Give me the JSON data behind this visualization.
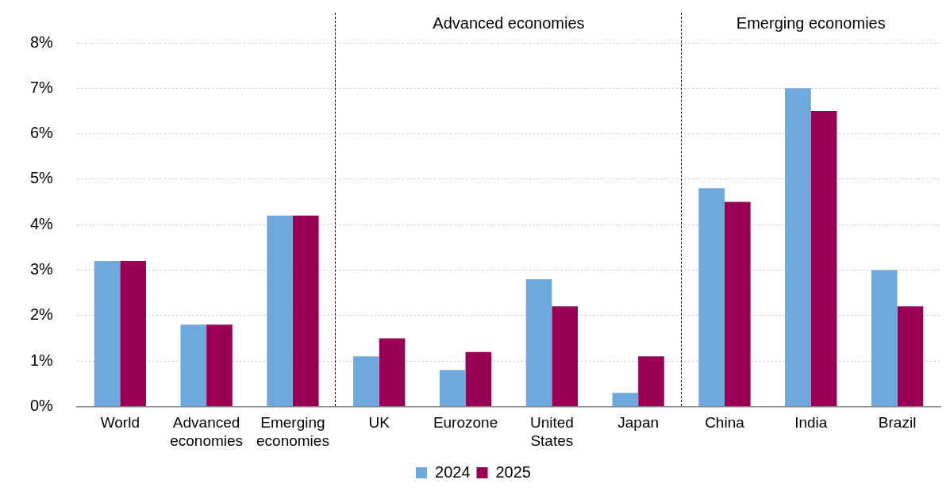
{
  "chart_data": {
    "type": "bar",
    "categories": [
      "World",
      "Advanced economies",
      "Emerging economies",
      "UK",
      "Eurozone",
      "United States",
      "Japan",
      "China",
      "India",
      "Brazil"
    ],
    "series": [
      {
        "name": "2024",
        "color": "#6fa8dc",
        "values": [
          3.2,
          1.8,
          4.2,
          1.1,
          0.8,
          2.8,
          0.3,
          4.8,
          7.0,
          3.0
        ]
      },
      {
        "name": "2025",
        "color": "#990055",
        "values": [
          3.2,
          1.8,
          4.2,
          1.5,
          1.2,
          2.2,
          1.1,
          4.5,
          6.5,
          2.2
        ]
      }
    ],
    "ylim": [
      0,
      8
    ],
    "yticks": [
      {
        "value": 0,
        "label": "0%"
      },
      {
        "value": 1,
        "label": "1%"
      },
      {
        "value": 2,
        "label": "2%"
      },
      {
        "value": 3,
        "label": "3%"
      },
      {
        "value": 4,
        "label": "4%"
      },
      {
        "value": 5,
        "label": "5%"
      },
      {
        "value": 6,
        "label": "6%"
      },
      {
        "value": 7,
        "label": "7%"
      },
      {
        "value": 8,
        "label": "8%"
      }
    ],
    "grid": "y",
    "legend": "bottom",
    "annotations": [
      "Advanced economies",
      "Emerging economies"
    ]
  }
}
